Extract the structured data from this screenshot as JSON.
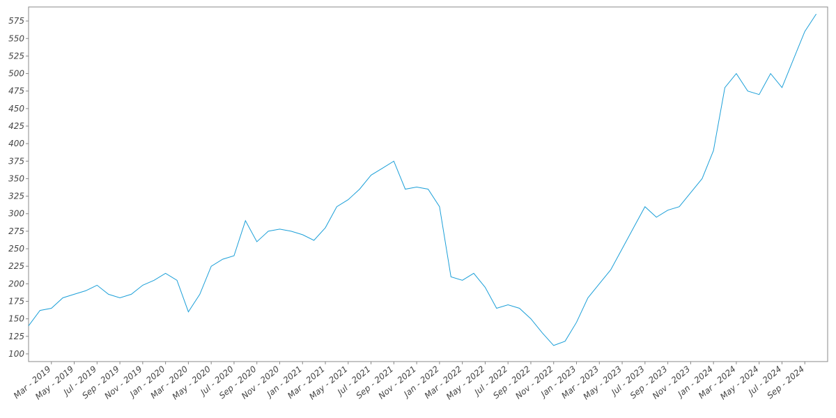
{
  "chart_data": {
    "type": "line",
    "x": [
      "2019-01",
      "2019-02",
      "2019-03",
      "2019-04",
      "2019-05",
      "2019-06",
      "2019-07",
      "2019-08",
      "2019-09",
      "2019-10",
      "2019-11",
      "2019-12",
      "2020-01",
      "2020-02",
      "2020-03",
      "2020-04",
      "2020-05",
      "2020-06",
      "2020-07",
      "2020-08",
      "2020-09",
      "2020-10",
      "2020-11",
      "2020-12",
      "2021-01",
      "2021-02",
      "2021-03",
      "2021-04",
      "2021-05",
      "2021-06",
      "2021-07",
      "2021-08",
      "2021-09",
      "2021-10",
      "2021-11",
      "2021-12",
      "2022-01",
      "2022-02",
      "2022-03",
      "2022-04",
      "2022-05",
      "2022-06",
      "2022-07",
      "2022-08",
      "2022-09",
      "2022-10",
      "2022-11",
      "2022-12",
      "2023-01",
      "2023-02",
      "2023-03",
      "2023-04",
      "2023-05",
      "2023-06",
      "2023-07",
      "2023-08",
      "2023-09",
      "2023-10",
      "2023-11",
      "2023-12",
      "2024-01",
      "2024-02",
      "2024-03",
      "2024-04",
      "2024-05",
      "2024-06",
      "2024-07",
      "2024-08",
      "2024-09",
      "2024-10"
    ],
    "series": [
      {
        "color": "#1b9fd8",
        "values": [
          140,
          162,
          165,
          180,
          185,
          190,
          198,
          185,
          180,
          185,
          198,
          205,
          215,
          205,
          160,
          185,
          225,
          235,
          240,
          290,
          260,
          275,
          278,
          275,
          270,
          262,
          280,
          310,
          320,
          335,
          355,
          365,
          375,
          335,
          338,
          335,
          310,
          210,
          205,
          215,
          195,
          165,
          170,
          165,
          150,
          130,
          112,
          118,
          145,
          180,
          200,
          220,
          250,
          280,
          310,
          295,
          305,
          310,
          330,
          350,
          390,
          480,
          500,
          475,
          470,
          500,
          480,
          520,
          560,
          585
        ]
      }
    ],
    "xlim": [
      "2019-01",
      "2024-10"
    ],
    "xticks": [
      {
        "value": "2019-03",
        "label": "Mar - 2019"
      },
      {
        "value": "2019-05",
        "label": "May - 2019"
      },
      {
        "value": "2019-07",
        "label": "Jul - 2019"
      },
      {
        "value": "2019-09",
        "label": "Sep - 2019"
      },
      {
        "value": "2019-11",
        "label": "Nov - 2019"
      },
      {
        "value": "2020-01",
        "label": "Jan - 2020"
      },
      {
        "value": "2020-03",
        "label": "Mar - 2020"
      },
      {
        "value": "2020-05",
        "label": "May - 2020"
      },
      {
        "value": "2020-07",
        "label": "Jul - 2020"
      },
      {
        "value": "2020-09",
        "label": "Sep - 2020"
      },
      {
        "value": "2020-11",
        "label": "Nov - 2020"
      },
      {
        "value": "2021-01",
        "label": "Jan - 2021"
      },
      {
        "value": "2021-03",
        "label": "Mar - 2021"
      },
      {
        "value": "2021-05",
        "label": "May - 2021"
      },
      {
        "value": "2021-07",
        "label": "Jul - 2021"
      },
      {
        "value": "2021-09",
        "label": "Sep - 2021"
      },
      {
        "value": "2021-11",
        "label": "Nov - 2021"
      },
      {
        "value": "2022-01",
        "label": "Jan - 2022"
      },
      {
        "value": "2022-03",
        "label": "Mar - 2022"
      },
      {
        "value": "2022-05",
        "label": "May - 2022"
      },
      {
        "value": "2022-07",
        "label": "Jul - 2022"
      },
      {
        "value": "2022-09",
        "label": "Sep - 2022"
      },
      {
        "value": "2022-11",
        "label": "Nov - 2022"
      },
      {
        "value": "2023-01",
        "label": "Jan - 2023"
      },
      {
        "value": "2023-03",
        "label": "Mar - 2023"
      },
      {
        "value": "2023-05",
        "label": "May - 2023"
      },
      {
        "value": "2023-07",
        "label": "Jul - 2023"
      },
      {
        "value": "2023-09",
        "label": "Sep - 2023"
      },
      {
        "value": "2023-11",
        "label": "Nov - 2023"
      },
      {
        "value": "2024-01",
        "label": "Jan - 2024"
      },
      {
        "value": "2024-03",
        "label": "Mar - 2024"
      },
      {
        "value": "2024-05",
        "label": "May - 2024"
      },
      {
        "value": "2024-07",
        "label": "Jul - 2024"
      },
      {
        "value": "2024-09",
        "label": "Sep - 2024"
      }
    ],
    "ylim": [
      89,
      595
    ],
    "yticks": [
      100,
      125,
      150,
      175,
      200,
      225,
      250,
      275,
      300,
      325,
      350,
      375,
      400,
      425,
      450,
      475,
      500,
      525,
      550,
      575
    ],
    "grid": false
  }
}
